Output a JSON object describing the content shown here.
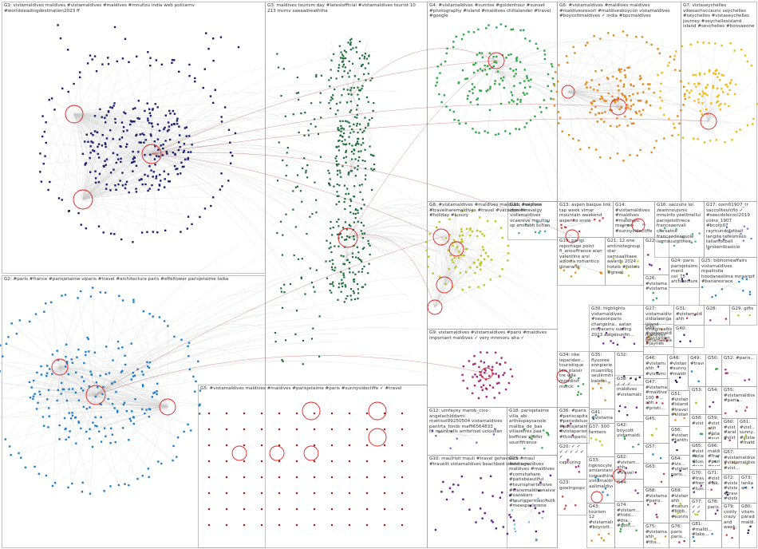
{
  "colors": {
    "G1": "#1a1f6e",
    "G2": "#1e7fc8",
    "G3": "#1e6b3a",
    "G4": "#2ea844",
    "G5": "#b01c1c",
    "G6": "#e08a1c",
    "G7": "#f2b90f",
    "G8": "#b8c81c",
    "G9": "#a0287a",
    "G10": "#6a1c8c",
    "G11": "#3aa6a6",
    "G12": "#7c5cc0",
    "G13": "#c83c3c",
    "G14": "#9a9a9a",
    "G15": "#6ec3e8",
    "G16": "#48b07a",
    "G17": "#6a86c8",
    "edge": "#c8c8c8",
    "inter": "#b44040",
    "box": "#9a9a9a"
  },
  "groups": [
    {
      "id": "G1",
      "label": "G1: vistamaldives maldives #vistamaldives #maldives #mnultzu india web policemv #worldsleadingdestination2023 ff"
    },
    {
      "id": "G2",
      "label": "G2: #paris #france #parisjetaime viparis #travel #architecture paris #effeltower parisjetaime taika"
    },
    {
      "id": "G3",
      "label": "G3: maldives tourism day #lateslofficial #vistamaldives tourist 10 213 mcmv saeaadreaththa"
    },
    {
      "id": "G4",
      "label": "G4: #vistamaldives #sunrise #goldenhour #sunset #photography #island #maldives chillalander #travel #google"
    },
    {
      "id": "G5",
      "label": "G5: #vistamaldives maldives #maldives #parisjetaime #paris #sunnysidecliffe ✓ #travel"
    },
    {
      "id": "G6",
      "label": "G6: #vistamaldives #maldives maldives #maldivesresort #maldivesboycon vistamaldives #boycottmaldives ✓ india #bpcmaldives"
    },
    {
      "id": "G7",
      "label": "G7: vistaseychelles vikeeachvccaunc seychelles #seychelles #vistaseychelles journey #seychellesisland island #seychelles #bonsaeone"
    },
    {
      "id": "G8",
      "label": "G8: #vistamaldives #maldives maldives #explore #travelnaremaldives #travel #vacation #travelgy #holiday #luxury"
    },
    {
      "id": "G9",
      "label": "G9: vistamaldives #vistamaldives #paris #maldives important maldives ✓ very mnmoru aha ✓"
    },
    {
      "id": "G10",
      "label": "G10: maulrisit mauli #travel gohavalica #maul #travelit vistamaldives beachbed island ego"
    },
    {
      "id": "G11",
      "label": "G11: maldives zheeve vistamaldives vcaereve mnultzu sp amitabh bchan"
    },
    {
      "id": "G12",
      "label": "G12: umfayey marob_cino angelachiddarni mattisol99250504 vistamaldives pantrta_fonds maffi6564833 fx_maintrells amfortsel ucioullan"
    },
    {
      "id": "G13",
      "label": "G13: aspen baique link tap week vimar mountain weekend aspenco snow"
    },
    {
      "id": "G14",
      "label": "G14: #vistamaldives #maldives #maldives meeree #sunnysidecliffe ✓ #sabbajjaloisetitors"
    },
    {
      "id": "G15",
      "label": "G15: #vistamaldives maldives #maldives #comshahare #parisbeautiful #tourisphertensive #tranemaldivenaivaya #sazabars #touriggermaschutkivaya #meesperlerene"
    },
    {
      "id": "G16",
      "label": "G16: saccuhs lol zeamnoujvnic mnuinfo yeellmellui parisjetsthreca franceaervali ciarsatne francaedeagsole iarmauuigtthee"
    },
    {
      "id": "G17",
      "label": "G17: oorn01907_tr saccoliteulcfio ✓ #seecdolecoci2019 coino_1907 #bcorp07 raymundofotball langite tefesmisio tailanfotbell lorsbentbasicio"
    },
    {
      "id": "G18",
      "label": "G18: parisjetaime villa_abi arthespaysanole maliba_de_bas villaserres paa bofficee chofer sounfifrance"
    },
    {
      "id": "G19",
      "label": "G19: parigi reportage point fi_anouffrance aian valentino arsi adlocia romantico itinerario"
    },
    {
      "id": "G20",
      "label": "G20: ✓ ✓ ✓ ✓ ✓ ✓ ✓ ✓ capturing"
    },
    {
      "id": "G21",
      "label": "G21: 12 one amtinotegroup star samsaalitaee awards 2024 hotels #hotels #greek"
    },
    {
      "id": "G22",
      "label": "G22:"
    },
    {
      "id": "G23",
      "label": "G23: gowingsspore"
    },
    {
      "id": "G24",
      "label": "G24: paris parisjetaime menil cel_75 architecture accumelsim"
    },
    {
      "id": "G25",
      "label": "G25: bibhomeaffairs vistamaldives mpalindia hoodaneelima mnaarpif #banaresrace #arahaenceconsmy abbeesthaoflcs"
    },
    {
      "id": "G26",
      "label": "G26: #vistamaldives #vistamaldives"
    },
    {
      "id": "G27",
      "label": "G27: vistamaldives oldlalaengal island villagirealbank maldives britain_ainaaly"
    },
    {
      "id": "G28",
      "label": "G28:"
    },
    {
      "id": "G29",
      "label": "G29: gifts"
    },
    {
      "id": "G30",
      "label": "G30: highlights vistamaldives #seasonparis changelna.. aatan moyacenv surfing 2023 aalgesunfin..."
    },
    {
      "id": "G31",
      "label": "G31: #vistamaldives ahh mnultzu"
    },
    {
      "id": "G32",
      "label": "G32:"
    },
    {
      "id": "G33",
      "label": "G33: tigknocyle_cl.. amiarstanngi coreadhiran vistamaldives aallmaldives"
    },
    {
      "id": "G34",
      "label": "G34: nke lepariden... touristique tais plaisir tre ville mondinit merck"
    },
    {
      "id": "G35",
      "label": "G35: flyuoree ennpierie... muamllbge seulinmhing... baiefoi..."
    },
    {
      "id": "G36",
      "label": "G36: #paris #pariscapitale #parisdeluxe #parisjetaime #vistaparisre #thisisparis..."
    },
    {
      "id": "G37",
      "label": "G37: 500 farmers"
    },
    {
      "id": "G38",
      "label": "G38: ✓ ✓ ✓ ✓ ✓ maldives #vistamaldives"
    },
    {
      "id": "G39",
      "label": "G39: #vistamaldives #pictatiion #jaynes"
    },
    {
      "id": "G40",
      "label": "G40:"
    },
    {
      "id": "G41",
      "label": "G41: #vistamaldives..."
    },
    {
      "id": "G42",
      "label": "G42: boycott vistamaldi..."
    },
    {
      "id": "G43",
      "label": "G43: tourism 12 #vistamaldiv... #boycott..."
    },
    {
      "id": "G44",
      "label": "G44:"
    },
    {
      "id": "G45",
      "label": "G45:"
    },
    {
      "id": "G46",
      "label": "G46: #vistamaldives ahh #vistama.."
    },
    {
      "id": "G47",
      "label": "G47: #vistamaldives #maldives 100 #... ahh #pristi... #balla..."
    },
    {
      "id": "G48",
      "label": "G48: #vistamaldives #sunnysidecliffe #maldiv..."
    },
    {
      "id": "G49",
      "label": "G49: #travel..."
    },
    {
      "id": "G50",
      "label": "G50:"
    },
    {
      "id": "G51",
      "label": "G51: #vistam... #island... #travel... #vistam..."
    },
    {
      "id": "G52",
      "label": "G52: #paris..."
    },
    {
      "id": "G53",
      "label": "G53:"
    },
    {
      "id": "G54",
      "label": "G54:"
    },
    {
      "id": "G55",
      "label": "G55: #vistamaldives #paris..."
    },
    {
      "id": "G56",
      "label": "G56: #vistama.. #tanthaz..."
    },
    {
      "id": "G57",
      "label": "G57:"
    },
    {
      "id": "G58",
      "label": "G58: #vist..."
    },
    {
      "id": "G59",
      "label": "G59: #vistam... ahh #island #sunny..."
    },
    {
      "id": "G60",
      "label": "G60: #vistam... #arabic... #vist..."
    },
    {
      "id": "G61",
      "label": "G61: #vist... sunny... #vistam... #maldi..."
    },
    {
      "id": "G62",
      "label": "G62: #vistam... ahh #travel #maldiv..."
    },
    {
      "id": "G63",
      "label": "G63:"
    },
    {
      "id": "G64",
      "label": "G64: #vis... #vistam... paris..."
    },
    {
      "id": "G65",
      "label": "G65: #vistamaldives #island #luxury #sunny..."
    },
    {
      "id": "G66",
      "label": "G66: maldives #france #paris #parisjetaime..."
    },
    {
      "id": "G67",
      "label": "G67: #vistamaldives #vistamaldives #vist..."
    },
    {
      "id": "G68",
      "label": "G68: #vistamaldives #paris.."
    },
    {
      "id": "G69",
      "label": "G69: #vistamaldives ahh #nature #bigb... #sunrise..."
    },
    {
      "id": "G70",
      "label": "G70: #travel #frenc... #luxury..."
    },
    {
      "id": "G71",
      "label": "G71: #vista... #lak... ."
    },
    {
      "id": "G72",
      "label": "G72: #vistam... #vistam... #travel #vistam..."
    },
    {
      "id": "G73",
      "label": "G73: lanka art"
    },
    {
      "id": "G74",
      "label": "G74: #vistam... #hidd... #tha... #goin..."
    },
    {
      "id": "G75",
      "label": "G75: #vistamaldives ahh #thx..."
    },
    {
      "id": "G76",
      "label": "G76: paris paris..."
    },
    {
      "id": "G77",
      "label": "G77: ✓ ✓ ✓ ✓"
    },
    {
      "id": "G78",
      "label": "G78: paris..."
    },
    {
      "id": "G79",
      "label": "G79: costly crazy and week..."
    },
    {
      "id": "G80",
      "label": "G80: vitam... paradi... maldi..."
    },
    {
      "id": "G81",
      "label": "G81: #maldi... #lake..."
    }
  ]
}
